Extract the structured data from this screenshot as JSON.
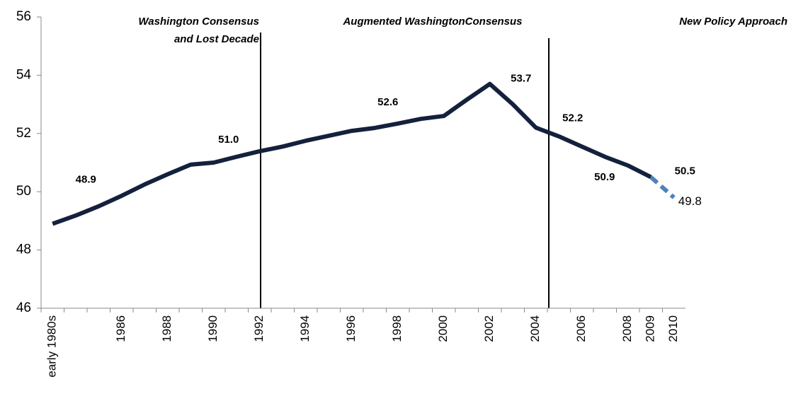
{
  "chart_data": {
    "type": "line",
    "periods": [
      {
        "label": [
          "Washington Consensus",
          "and Lost Decade"
        ]
      },
      {
        "label": [
          "Augmented WashingtonConsensus"
        ]
      },
      {
        "label": [
          "New Policy Approach"
        ]
      }
    ],
    "categories": [
      "early 1980s",
      null,
      null,
      "1986",
      null,
      "1988",
      null,
      "1990",
      null,
      "1992",
      null,
      "1994",
      null,
      "1996",
      null,
      "1998",
      null,
      "2000",
      null,
      "2002",
      null,
      "2004",
      null,
      "2006",
      null,
      "2008",
      "2009",
      "2010"
    ],
    "series": [
      {
        "color": "#14213d",
        "dashed": false,
        "values": [
          48.9,
          49.18,
          49.5,
          49.86,
          50.25,
          50.6,
          50.93,
          51.0,
          51.2,
          51.39,
          51.55,
          51.75,
          51.92,
          52.09,
          52.19,
          52.34,
          52.5,
          52.6,
          53.16,
          53.7,
          53.0,
          52.2,
          51.9,
          51.55,
          51.2,
          50.9,
          50.5,
          null
        ],
        "value_labels": [
          "48.9",
          null,
          null,
          null,
          null,
          null,
          null,
          "51.0",
          null,
          null,
          null,
          null,
          null,
          null,
          null,
          null,
          null,
          "52.6",
          null,
          "53.7",
          null,
          "52.2",
          null,
          null,
          null,
          "50.9",
          "50.5",
          null
        ]
      },
      {
        "color": "#4f81bd",
        "dashed": true,
        "values": [
          null,
          null,
          null,
          null,
          null,
          null,
          null,
          null,
          null,
          null,
          null,
          null,
          null,
          null,
          null,
          null,
          null,
          null,
          null,
          null,
          null,
          null,
          null,
          null,
          null,
          null,
          50.5,
          49.8
        ],
        "value_labels": [
          null,
          null,
          null,
          null,
          null,
          null,
          null,
          null,
          null,
          null,
          null,
          null,
          null,
          null,
          null,
          null,
          null,
          null,
          null,
          null,
          null,
          null,
          null,
          null,
          null,
          null,
          null,
          "49.8"
        ]
      }
    ],
    "ylim": [
      46,
      56
    ],
    "yticks": [
      46,
      48,
      50,
      52,
      54,
      56
    ],
    "grid": false
  }
}
